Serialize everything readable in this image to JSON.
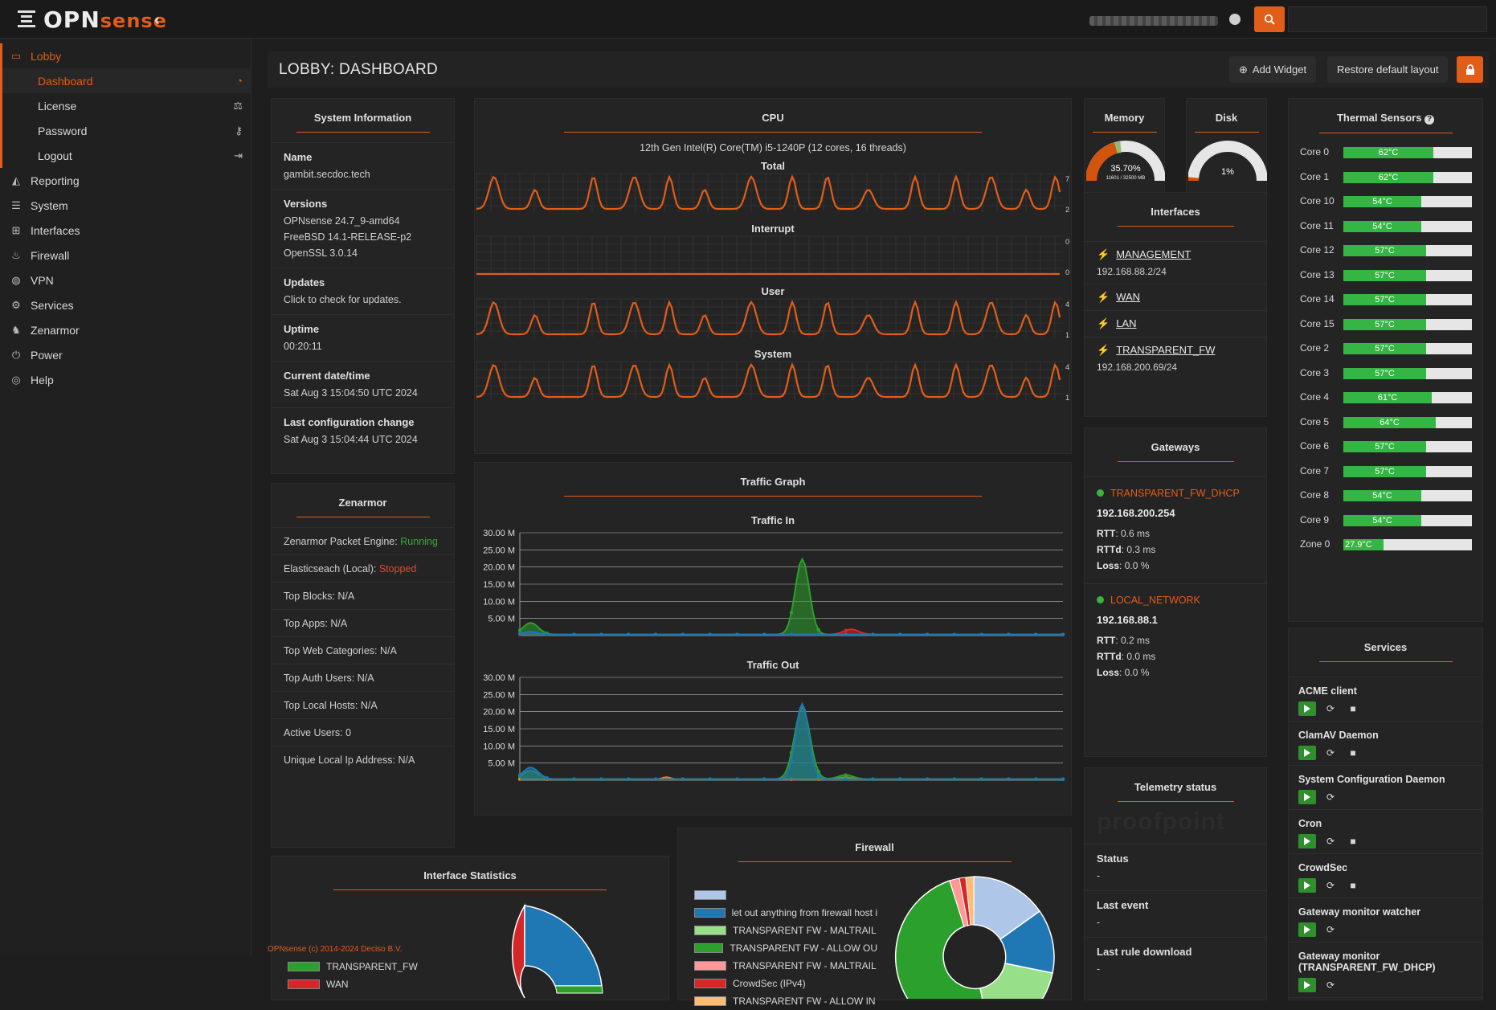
{
  "brand": {
    "name_part1": "OPN",
    "name_part2": "sense"
  },
  "sidebar": {
    "items": [
      {
        "label": "Lobby",
        "icon": "laptop-icon"
      },
      {
        "label": "Dashboard",
        "icon": "dashboard-icon"
      },
      {
        "label": "License",
        "icon": "balance-scale-icon"
      },
      {
        "label": "Password",
        "icon": "key-icon"
      },
      {
        "label": "Logout",
        "icon": "sign-out-icon"
      },
      {
        "label": "Reporting",
        "icon": "area-chart-icon"
      },
      {
        "label": "System",
        "icon": "server-icon"
      },
      {
        "label": "Interfaces",
        "icon": "sitemap-icon"
      },
      {
        "label": "Firewall",
        "icon": "fire-icon"
      },
      {
        "label": "VPN",
        "icon": "globe-icon"
      },
      {
        "label": "Services",
        "icon": "cog-icon"
      },
      {
        "label": "Zenarmor",
        "icon": "zenarmor-icon"
      },
      {
        "label": "Power",
        "icon": "plug-icon"
      },
      {
        "label": "Help",
        "icon": "life-ring-icon"
      }
    ]
  },
  "header": {
    "title": "LOBBY: DASHBOARD",
    "add_widget": "Add Widget",
    "restore": "Restore default layout"
  },
  "sysinfo": {
    "title": "System Information",
    "name_label": "Name",
    "name": "gambit.secdoc.tech",
    "versions_label": "Versions",
    "v1": "OPNsense 24.7_9-amd64",
    "v2": "FreeBSD 14.1-RELEASE-p2",
    "v3": "OpenSSL 3.0.14",
    "updates_label": "Updates",
    "updates": "Click to check for updates.",
    "uptime_label": "Uptime",
    "uptime": "00:20:11",
    "datetime_label": "Current date/time",
    "datetime": "Sat Aug 3 15:04:50 UTC 2024",
    "lastconf_label": "Last configuration change",
    "lastconf": "Sat Aug 3 15:04:44 UTC 2024"
  },
  "cpu": {
    "title": "CPU",
    "model": "12th Gen Intel(R) Core(TM) i5-1240P (12 cores, 16 threads)",
    "graphs": [
      {
        "label": "Total",
        "max": "7",
        "min": "2"
      },
      {
        "label": "Interrupt",
        "max": "0",
        "min": "0"
      },
      {
        "label": "User",
        "max": "4",
        "min": "1"
      },
      {
        "label": "System",
        "max": "4",
        "min": "1"
      }
    ]
  },
  "memory": {
    "title": "Memory",
    "percent": 35.7,
    "label": "35.70%",
    "detail": "11601 / 32500 MB"
  },
  "disk": {
    "title": "Disk",
    "percent": 1,
    "label": "1%"
  },
  "thermal": {
    "title": "Thermal Sensors",
    "sensors": [
      {
        "name": "Core 0",
        "value": "62°C",
        "fill": 0.62
      },
      {
        "name": "Core 1",
        "value": "62°C",
        "fill": 0.62
      },
      {
        "name": "Core 10",
        "value": "54°C",
        "fill": 0.54
      },
      {
        "name": "Core 11",
        "value": "54°C",
        "fill": 0.54
      },
      {
        "name": "Core 12",
        "value": "57°C",
        "fill": 0.57
      },
      {
        "name": "Core 13",
        "value": "57°C",
        "fill": 0.57
      },
      {
        "name": "Core 14",
        "value": "57°C",
        "fill": 0.57
      },
      {
        "name": "Core 15",
        "value": "57°C",
        "fill": 0.57
      },
      {
        "name": "Core 2",
        "value": "57°C",
        "fill": 0.57
      },
      {
        "name": "Core 3",
        "value": "57°C",
        "fill": 0.57
      },
      {
        "name": "Core 4",
        "value": "61°C",
        "fill": 0.61
      },
      {
        "name": "Core 5",
        "value": "64°C",
        "fill": 0.64
      },
      {
        "name": "Core 6",
        "value": "57°C",
        "fill": 0.57
      },
      {
        "name": "Core 7",
        "value": "57°C",
        "fill": 0.57
      },
      {
        "name": "Core 8",
        "value": "54°C",
        "fill": 0.54
      },
      {
        "name": "Core 9",
        "value": "54°C",
        "fill": 0.54
      },
      {
        "name": "Zone 0",
        "value": "27.9°C",
        "fill": 0.28
      }
    ]
  },
  "interfaces": {
    "title": "Interfaces",
    "items": [
      {
        "name": "MANAGEMENT",
        "ip": "192.168.88.2/24"
      },
      {
        "name": "WAN",
        "ip": ""
      },
      {
        "name": "LAN",
        "ip": ""
      },
      {
        "name": "TRANSPARENT_FW",
        "ip": "192.168.200.69/24"
      }
    ]
  },
  "gateways": {
    "title": "Gateways",
    "items": [
      {
        "name": "TRANSPARENT_FW_DHCP",
        "ip": "192.168.200.254",
        "rtt": "0.6 ms",
        "rttd": "0.3 ms",
        "loss": "0.0 %"
      },
      {
        "name": "LOCAL_NETWORK",
        "ip": "192.168.88.1",
        "rtt": "0.2 ms",
        "rttd": "0.0 ms",
        "loss": "0.0 %"
      }
    ],
    "rtt_label": "RTT",
    "rttd_label": "RTTd",
    "loss_label": "Loss"
  },
  "telemetry": {
    "title": "Telemetry status",
    "status_label": "Status",
    "status": "-",
    "last_event_label": "Last event",
    "last_event": "-",
    "last_rule_label": "Last rule download",
    "last_rule": "-"
  },
  "services": {
    "title": "Services",
    "items": [
      {
        "name": "ACME client",
        "stop": true
      },
      {
        "name": "ClamAV Daemon",
        "stop": true
      },
      {
        "name": "System Configuration Daemon",
        "stop": false
      },
      {
        "name": "Cron",
        "stop": true
      },
      {
        "name": "CrowdSec",
        "stop": true
      },
      {
        "name": "Gateway monitor watcher",
        "stop": false
      },
      {
        "name": "Gateway monitor (TRANSPARENT_FW_DHCP)",
        "stop": false
      }
    ]
  },
  "zenarmor": {
    "title": "Zenarmor",
    "engine_label": "Zenarmor Packet Engine: ",
    "engine": "Running",
    "es_label": "Elasticseach (Local): ",
    "es": "Stopped",
    "rows": [
      "Top Blocks: N/A",
      "Top Apps: N/A",
      "Top Web Categories: N/A",
      "Top Auth Users: N/A",
      "Top Local Hosts: N/A",
      "Active Users: 0",
      "Unique Local Ip Address: N/A"
    ]
  },
  "traffic": {
    "title": "Traffic Graph",
    "in_label": "Traffic In",
    "out_label": "Traffic Out",
    "ticks": [
      "30.00 M",
      "25.00 M",
      "20.00 M",
      "15.00 M",
      "10.00 M",
      "5.00 M"
    ]
  },
  "ifstats": {
    "title": "Interface Statistics",
    "legend": [
      {
        "name": "TRANSPARENT_FW",
        "color": "#2ca02c"
      },
      {
        "name": "WAN",
        "color": "#d62728"
      }
    ]
  },
  "firewall": {
    "title": "Firewall",
    "legend": [
      {
        "name": "",
        "color": "#aec7e8"
      },
      {
        "name": "let out anything from firewall host i",
        "color": "#1f77b4"
      },
      {
        "name": "TRANSPARENT FW - MALTRAIL",
        "color": "#98df8a"
      },
      {
        "name": "TRANSPARENT FW - ALLOW OU",
        "color": "#2ca02c"
      },
      {
        "name": "TRANSPARENT FW - MALTRAIL",
        "color": "#ff9896"
      },
      {
        "name": "CrowdSec (IPv4)",
        "color": "#d62728"
      },
      {
        "name": "TRANSPARENT FW - ALLOW IN",
        "color": "#ffbb78"
      }
    ]
  },
  "footer": {
    "text": "OPNsense (c) 2014-2024 Deciso B.V."
  }
}
